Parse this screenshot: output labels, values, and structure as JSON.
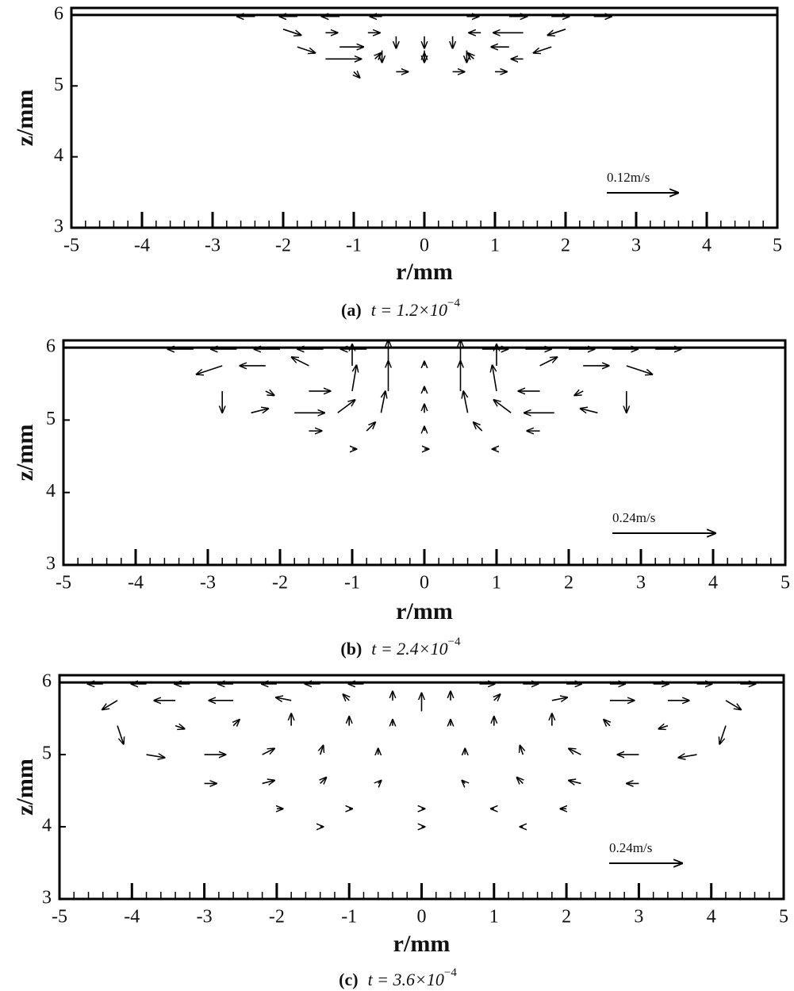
{
  "chart_data": [
    {
      "type": "quiver",
      "xlabel": "r/mm",
      "ylabel": "z/mm",
      "xlim": [
        -5,
        5
      ],
      "ylim": [
        3,
        6.1
      ],
      "xticks": [
        -5,
        -4,
        -3,
        -2,
        -1,
        0,
        1,
        2,
        3,
        4,
        5
      ],
      "yticks": [
        3,
        4,
        5,
        6
      ],
      "caption_label": "(a)",
      "caption_text": "t = 1.2×10",
      "caption_exponent": "−4",
      "reference": {
        "label": "0.12m/s",
        "value": 0.12
      },
      "surface_z": 6,
      "color": "#000000",
      "vectors": {
        "r": [
          -2.4,
          -1.8,
          -1.2,
          -0.6,
          0.6,
          1.2,
          1.8,
          2.4,
          -2.0,
          -1.4,
          -0.8,
          -0.4,
          0,
          0.4,
          0.8,
          1.4,
          2.0,
          -1.8,
          -1.2,
          -0.6,
          0,
          0.6,
          1.2,
          1.8,
          -1.4,
          -0.7,
          0,
          0.7,
          1.4,
          -1.0,
          -0.4,
          0.4,
          1.0
        ],
        "z": [
          5.98,
          5.98,
          5.98,
          5.98,
          5.98,
          5.98,
          5.98,
          5.98,
          5.8,
          5.75,
          5.75,
          5.7,
          5.7,
          5.7,
          5.75,
          5.75,
          5.8,
          5.55,
          5.55,
          5.5,
          5.5,
          5.5,
          5.55,
          5.55,
          5.38,
          5.38,
          5.38,
          5.38,
          5.38,
          5.2,
          5.2,
          5.2,
          5.2
        ],
        "u": [
          -0.03,
          -0.03,
          -0.03,
          -0.02,
          0.02,
          0.03,
          0.03,
          0.03,
          0.03,
          0.02,
          0.02,
          0,
          0,
          0,
          -0.02,
          -0.05,
          -0.03,
          0.03,
          0.04,
          0,
          0,
          0,
          -0.03,
          -0.03,
          0.06,
          0.01,
          0,
          -0.01,
          -0.02,
          0.01,
          0.02,
          0.02,
          0.02
        ],
        "w": [
          0,
          0,
          0,
          0,
          0,
          0,
          0,
          0,
          -0.01,
          0,
          0,
          -0.02,
          -0.02,
          -0.02,
          0,
          0,
          -0.01,
          -0.01,
          0,
          -0.02,
          -0.02,
          -0.02,
          0,
          -0.01,
          0,
          0.01,
          0.01,
          0.01,
          0,
          -0.01,
          0,
          0,
          0
        ]
      }
    },
    {
      "type": "quiver",
      "xlabel": "r/mm",
      "ylabel": "z/mm",
      "xlim": [
        -5,
        5
      ],
      "ylim": [
        3,
        6.1
      ],
      "xticks": [
        -5,
        -4,
        -3,
        -2,
        -1,
        0,
        1,
        2,
        3,
        4,
        5
      ],
      "yticks": [
        3,
        4,
        5,
        6
      ],
      "caption_label": "(b)",
      "caption_text": "t = 2.4×10",
      "caption_exponent": "−4",
      "reference": {
        "label": "0.24m/s",
        "value": 0.24
      },
      "surface_z": 6,
      "color": "#000000",
      "vectors": {
        "r": [
          -3.2,
          -2.6,
          -2.0,
          -1.4,
          -0.8,
          0.8,
          1.4,
          2.0,
          2.6,
          3.2,
          -2.8,
          -2.2,
          -1.6,
          -1.0,
          -0.5,
          0,
          0.5,
          1.0,
          1.6,
          2.2,
          2.8,
          -2.8,
          -2.2,
          -1.6,
          -1.0,
          -0.5,
          0,
          0.5,
          1.0,
          1.6,
          2.2,
          2.8,
          -2.4,
          -1.8,
          -1.2,
          -0.6,
          0,
          0.6,
          1.2,
          1.8,
          2.4,
          -1.6,
          -0.8,
          0,
          0.8,
          1.6,
          -1.0,
          0,
          1.0
        ],
        "z": [
          5.98,
          5.98,
          5.98,
          5.98,
          5.98,
          5.98,
          5.98,
          5.98,
          5.98,
          5.98,
          5.75,
          5.75,
          5.75,
          5.75,
          5.75,
          5.75,
          5.75,
          5.75,
          5.75,
          5.75,
          5.75,
          5.4,
          5.4,
          5.4,
          5.4,
          5.4,
          5.4,
          5.4,
          5.4,
          5.4,
          5.4,
          5.4,
          5.1,
          5.1,
          5.1,
          5.1,
          5.1,
          5.1,
          5.1,
          5.1,
          5.1,
          4.85,
          4.85,
          4.85,
          4.85,
          4.85,
          4.6,
          4.6,
          4.6
        ],
        "u": [
          -0.06,
          -0.06,
          -0.06,
          -0.06,
          -0.06,
          0.06,
          0.06,
          0.06,
          0.06,
          0.06,
          -0.06,
          -0.06,
          -0.04,
          0,
          0,
          0,
          0,
          0,
          0.04,
          0.06,
          0.06,
          0,
          0.02,
          0.05,
          0.01,
          0,
          0,
          0,
          -0.01,
          -0.05,
          -0.02,
          0,
          0.04,
          0.07,
          0.04,
          0.01,
          0,
          -0.01,
          -0.04,
          -0.07,
          -0.04,
          0.03,
          0.02,
          0,
          -0.02,
          -0.03,
          0.01,
          0.01,
          -0.01
        ],
        "w": [
          0,
          0,
          0,
          0,
          0,
          0,
          0,
          0,
          0,
          0,
          -0.02,
          0,
          0.02,
          0.05,
          0.06,
          0.01,
          0.06,
          0.05,
          0.02,
          0,
          -0.02,
          -0.05,
          -0.01,
          0,
          0.06,
          0.07,
          0.01,
          0.07,
          0.06,
          0,
          -0.01,
          -0.05,
          0.01,
          0,
          0.03,
          0.05,
          0.02,
          0.05,
          0.03,
          0,
          0.01,
          0,
          0.02,
          0.01,
          0.02,
          0,
          0,
          0,
          0
        ]
      }
    },
    {
      "type": "quiver",
      "xlabel": "r/mm",
      "ylabel": "z/mm",
      "xlim": [
        -5,
        5
      ],
      "ylim": [
        3,
        6.1
      ],
      "xticks": [
        -5,
        -4,
        -3,
        -2,
        -1,
        0,
        1,
        2,
        3,
        4,
        5
      ],
      "yticks": [
        3,
        4,
        5,
        6
      ],
      "caption_label": "(c)",
      "caption_text": "t = 3.6×10",
      "caption_exponent": "−4",
      "reference": {
        "label": "0.24m/s",
        "value": 0.24
      },
      "surface_z": 6,
      "color": "#000000",
      "vectors": {
        "r": [
          -4.4,
          -3.8,
          -3.2,
          -2.6,
          -2.0,
          -1.4,
          -0.8,
          0.8,
          1.4,
          2.0,
          2.6,
          3.2,
          3.8,
          4.4,
          -4.2,
          -3.4,
          -2.6,
          -1.8,
          -1.0,
          -0.4,
          0.4,
          1.0,
          1.8,
          2.6,
          3.4,
          4.2,
          0,
          -4.2,
          -3.4,
          -2.6,
          -1.8,
          -1.0,
          -0.4,
          0.4,
          1.0,
          1.8,
          2.6,
          3.4,
          4.2,
          -3.8,
          -3.0,
          -2.2,
          -1.4,
          -0.6,
          0.6,
          1.4,
          2.2,
          3.0,
          3.8,
          -3.0,
          -2.2,
          -1.4,
          -0.6,
          0.6,
          1.4,
          2.2,
          3.0,
          -2.0,
          -1.0,
          0,
          1.0,
          2.0,
          -1.4,
          0,
          1.4
        ],
        "z": [
          5.98,
          5.98,
          5.98,
          5.98,
          5.98,
          5.98,
          5.98,
          5.98,
          5.98,
          5.98,
          5.98,
          5.98,
          5.98,
          5.98,
          5.75,
          5.75,
          5.75,
          5.75,
          5.75,
          5.75,
          5.75,
          5.75,
          5.75,
          5.75,
          5.75,
          5.75,
          5.6,
          5.4,
          5.4,
          5.4,
          5.4,
          5.4,
          5.4,
          5.4,
          5.4,
          5.4,
          5.4,
          5.4,
          5.4,
          5.0,
          5.0,
          5.0,
          5.0,
          5.0,
          5.0,
          5.0,
          5.0,
          5.0,
          5.0,
          4.6,
          4.6,
          4.6,
          4.6,
          4.6,
          4.6,
          4.6,
          4.6,
          4.25,
          4.25,
          4.25,
          4.25,
          4.25,
          4.0,
          4.0,
          4.0
        ],
        "u": [
          -0.05,
          -0.05,
          -0.05,
          -0.05,
          -0.05,
          -0.05,
          -0.05,
          0.05,
          0.05,
          0.05,
          0.05,
          0.05,
          0.05,
          0.05,
          -0.05,
          -0.07,
          -0.08,
          -0.05,
          -0.02,
          0,
          0,
          0.02,
          0.05,
          0.08,
          0.07,
          0.05,
          0,
          0.02,
          0.03,
          0.02,
          0,
          0,
          0,
          0,
          0,
          0,
          -0.02,
          -0.03,
          -0.02,
          0.06,
          0.07,
          0.04,
          0.01,
          0,
          0,
          -0.01,
          -0.04,
          -0.07,
          -0.06,
          0.04,
          0.04,
          0.02,
          0.01,
          -0.01,
          -0.02,
          -0.04,
          -0.04,
          0.02,
          0.01,
          0.01,
          -0.01,
          -0.02,
          0.01,
          0.01,
          -0.01
        ],
        "w": [
          0,
          0,
          0,
          0,
          0,
          0,
          0,
          0,
          0,
          0,
          0,
          0,
          0,
          0,
          -0.03,
          0,
          0,
          0.01,
          0.02,
          0.03,
          0.03,
          0.02,
          0.01,
          0,
          0,
          -0.03,
          0.06,
          -0.06,
          -0.01,
          0.02,
          0.04,
          0.03,
          0.02,
          0.02,
          0.03,
          0.04,
          0.02,
          -0.01,
          -0.06,
          -0.01,
          0,
          0.02,
          0.03,
          0.02,
          0.02,
          0.03,
          0.02,
          0,
          -0.01,
          0,
          0.01,
          0.02,
          0.01,
          0.01,
          0.02,
          0.01,
          0,
          0,
          0,
          0,
          0,
          0,
          0,
          0,
          0
        ]
      }
    }
  ]
}
